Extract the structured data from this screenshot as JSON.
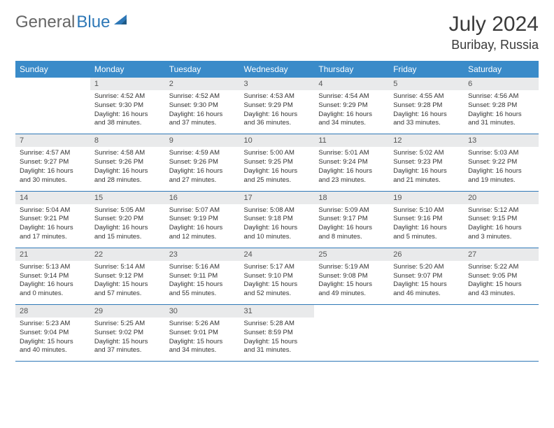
{
  "brand": {
    "part1": "General",
    "part2": "Blue",
    "logo_color": "#2e78b7"
  },
  "title": "July 2024",
  "location": "Buribay, Russia",
  "colors": {
    "header_bg": "#3a8bc9",
    "header_text": "#ffffff",
    "daynum_bg": "#e9eaeb",
    "row_border": "#2e78b7",
    "body_text": "#333333",
    "page_bg": "#ffffff"
  },
  "weekdays": [
    "Sunday",
    "Monday",
    "Tuesday",
    "Wednesday",
    "Thursday",
    "Friday",
    "Saturday"
  ],
  "start_weekday": 1,
  "days_in_month": 31,
  "days": {
    "1": {
      "sunrise": "Sunrise: 4:52 AM",
      "sunset": "Sunset: 9:30 PM",
      "daylight": "Daylight: 16 hours and 38 minutes."
    },
    "2": {
      "sunrise": "Sunrise: 4:52 AM",
      "sunset": "Sunset: 9:30 PM",
      "daylight": "Daylight: 16 hours and 37 minutes."
    },
    "3": {
      "sunrise": "Sunrise: 4:53 AM",
      "sunset": "Sunset: 9:29 PM",
      "daylight": "Daylight: 16 hours and 36 minutes."
    },
    "4": {
      "sunrise": "Sunrise: 4:54 AM",
      "sunset": "Sunset: 9:29 PM",
      "daylight": "Daylight: 16 hours and 34 minutes."
    },
    "5": {
      "sunrise": "Sunrise: 4:55 AM",
      "sunset": "Sunset: 9:28 PM",
      "daylight": "Daylight: 16 hours and 33 minutes."
    },
    "6": {
      "sunrise": "Sunrise: 4:56 AM",
      "sunset": "Sunset: 9:28 PM",
      "daylight": "Daylight: 16 hours and 31 minutes."
    },
    "7": {
      "sunrise": "Sunrise: 4:57 AM",
      "sunset": "Sunset: 9:27 PM",
      "daylight": "Daylight: 16 hours and 30 minutes."
    },
    "8": {
      "sunrise": "Sunrise: 4:58 AM",
      "sunset": "Sunset: 9:26 PM",
      "daylight": "Daylight: 16 hours and 28 minutes."
    },
    "9": {
      "sunrise": "Sunrise: 4:59 AM",
      "sunset": "Sunset: 9:26 PM",
      "daylight": "Daylight: 16 hours and 27 minutes."
    },
    "10": {
      "sunrise": "Sunrise: 5:00 AM",
      "sunset": "Sunset: 9:25 PM",
      "daylight": "Daylight: 16 hours and 25 minutes."
    },
    "11": {
      "sunrise": "Sunrise: 5:01 AM",
      "sunset": "Sunset: 9:24 PM",
      "daylight": "Daylight: 16 hours and 23 minutes."
    },
    "12": {
      "sunrise": "Sunrise: 5:02 AM",
      "sunset": "Sunset: 9:23 PM",
      "daylight": "Daylight: 16 hours and 21 minutes."
    },
    "13": {
      "sunrise": "Sunrise: 5:03 AM",
      "sunset": "Sunset: 9:22 PM",
      "daylight": "Daylight: 16 hours and 19 minutes."
    },
    "14": {
      "sunrise": "Sunrise: 5:04 AM",
      "sunset": "Sunset: 9:21 PM",
      "daylight": "Daylight: 16 hours and 17 minutes."
    },
    "15": {
      "sunrise": "Sunrise: 5:05 AM",
      "sunset": "Sunset: 9:20 PM",
      "daylight": "Daylight: 16 hours and 15 minutes."
    },
    "16": {
      "sunrise": "Sunrise: 5:07 AM",
      "sunset": "Sunset: 9:19 PM",
      "daylight": "Daylight: 16 hours and 12 minutes."
    },
    "17": {
      "sunrise": "Sunrise: 5:08 AM",
      "sunset": "Sunset: 9:18 PM",
      "daylight": "Daylight: 16 hours and 10 minutes."
    },
    "18": {
      "sunrise": "Sunrise: 5:09 AM",
      "sunset": "Sunset: 9:17 PM",
      "daylight": "Daylight: 16 hours and 8 minutes."
    },
    "19": {
      "sunrise": "Sunrise: 5:10 AM",
      "sunset": "Sunset: 9:16 PM",
      "daylight": "Daylight: 16 hours and 5 minutes."
    },
    "20": {
      "sunrise": "Sunrise: 5:12 AM",
      "sunset": "Sunset: 9:15 PM",
      "daylight": "Daylight: 16 hours and 3 minutes."
    },
    "21": {
      "sunrise": "Sunrise: 5:13 AM",
      "sunset": "Sunset: 9:14 PM",
      "daylight": "Daylight: 16 hours and 0 minutes."
    },
    "22": {
      "sunrise": "Sunrise: 5:14 AM",
      "sunset": "Sunset: 9:12 PM",
      "daylight": "Daylight: 15 hours and 57 minutes."
    },
    "23": {
      "sunrise": "Sunrise: 5:16 AM",
      "sunset": "Sunset: 9:11 PM",
      "daylight": "Daylight: 15 hours and 55 minutes."
    },
    "24": {
      "sunrise": "Sunrise: 5:17 AM",
      "sunset": "Sunset: 9:10 PM",
      "daylight": "Daylight: 15 hours and 52 minutes."
    },
    "25": {
      "sunrise": "Sunrise: 5:19 AM",
      "sunset": "Sunset: 9:08 PM",
      "daylight": "Daylight: 15 hours and 49 minutes."
    },
    "26": {
      "sunrise": "Sunrise: 5:20 AM",
      "sunset": "Sunset: 9:07 PM",
      "daylight": "Daylight: 15 hours and 46 minutes."
    },
    "27": {
      "sunrise": "Sunrise: 5:22 AM",
      "sunset": "Sunset: 9:05 PM",
      "daylight": "Daylight: 15 hours and 43 minutes."
    },
    "28": {
      "sunrise": "Sunrise: 5:23 AM",
      "sunset": "Sunset: 9:04 PM",
      "daylight": "Daylight: 15 hours and 40 minutes."
    },
    "29": {
      "sunrise": "Sunrise: 5:25 AM",
      "sunset": "Sunset: 9:02 PM",
      "daylight": "Daylight: 15 hours and 37 minutes."
    },
    "30": {
      "sunrise": "Sunrise: 5:26 AM",
      "sunset": "Sunset: 9:01 PM",
      "daylight": "Daylight: 15 hours and 34 minutes."
    },
    "31": {
      "sunrise": "Sunrise: 5:28 AM",
      "sunset": "Sunset: 8:59 PM",
      "daylight": "Daylight: 15 hours and 31 minutes."
    }
  }
}
